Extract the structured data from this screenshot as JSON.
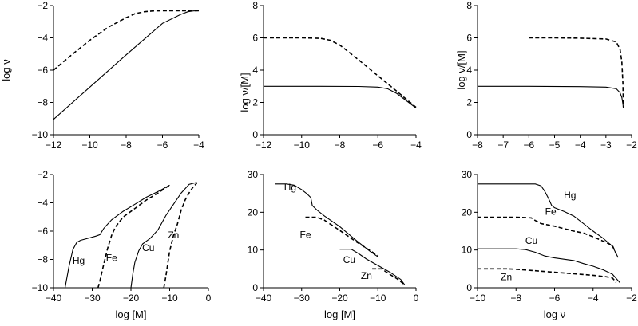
{
  "chart_data": [
    {
      "id": "p1",
      "type": "line",
      "xlabel": "",
      "ylabel": "log ν",
      "xlim": [
        -12,
        -4
      ],
      "ylim": [
        -10,
        -2
      ],
      "xticks": [
        "−12",
        "−10",
        "−8",
        "−6",
        "−4"
      ],
      "xtick_values": [
        -12,
        -10,
        -8,
        -6,
        -4
      ],
      "yticks": [
        "−10",
        "−8",
        "−6",
        "−4",
        "−2"
      ],
      "ytick_values": [
        -10,
        -8,
        -6,
        -4,
        -2
      ],
      "series": [
        {
          "style": "solid",
          "x": [
            -12,
            -10,
            -8,
            -6,
            -5,
            -4.6,
            -4.3,
            -4
          ],
          "y": [
            -9.05,
            -7.05,
            -5.05,
            -3.1,
            -2.55,
            -2.38,
            -2.33,
            -2.32
          ]
        },
        {
          "style": "dashed",
          "x": [
            -12,
            -11,
            -10,
            -9,
            -8,
            -7.5,
            -7,
            -6.5,
            -6,
            -5,
            -4
          ],
          "y": [
            -6.0,
            -5.05,
            -4.15,
            -3.35,
            -2.75,
            -2.5,
            -2.38,
            -2.33,
            -2.32,
            -2.32,
            -2.32
          ]
        }
      ],
      "labels": []
    },
    {
      "id": "p2",
      "type": "line",
      "xlabel": "",
      "ylabel": "log ν/[M]",
      "xlim": [
        -12,
        -4
      ],
      "ylim": [
        0,
        8
      ],
      "xticks": [
        "−12",
        "−10",
        "−8",
        "−6",
        "−4"
      ],
      "xtick_values": [
        -12,
        -10,
        -8,
        -6,
        -4
      ],
      "yticks": [
        "0",
        "2",
        "4",
        "6",
        "8"
      ],
      "ytick_values": [
        0,
        2,
        4,
        6,
        8
      ],
      "series": [
        {
          "style": "solid",
          "x": [
            -12,
            -9,
            -7,
            -6,
            -5.5,
            -5,
            -4.5,
            -4
          ],
          "y": [
            3.0,
            3.0,
            2.99,
            2.95,
            2.85,
            2.55,
            2.1,
            1.65
          ]
        },
        {
          "style": "dashed",
          "x": [
            -12,
            -10,
            -9,
            -8.5,
            -8,
            -7.5,
            -7,
            -6,
            -5,
            -4
          ],
          "y": [
            6.0,
            6.0,
            5.97,
            5.85,
            5.55,
            5.1,
            4.62,
            3.65,
            2.68,
            1.7
          ]
        }
      ],
      "labels": []
    },
    {
      "id": "p3",
      "type": "line",
      "xlabel": "",
      "ylabel": "log ν/[M]",
      "xlim": [
        -8,
        -2
      ],
      "ylim": [
        0,
        8
      ],
      "xticks": [
        "−8",
        "−7",
        "−6",
        "−5",
        "−4",
        "−3",
        "−2"
      ],
      "xtick_values": [
        -8,
        -7,
        -6,
        -5,
        -4,
        -3,
        -2
      ],
      "yticks": [
        "0",
        "2",
        "4",
        "6",
        "8"
      ],
      "ytick_values": [
        0,
        2,
        4,
        6,
        8
      ],
      "series": [
        {
          "style": "solid",
          "x": [
            -8,
            -6,
            -4,
            -3,
            -2.6,
            -2.45,
            -2.38,
            -2.34,
            -2.32
          ],
          "y": [
            3.0,
            3.0,
            2.98,
            2.95,
            2.85,
            2.6,
            2.3,
            1.9,
            1.65
          ]
        },
        {
          "style": "dashed",
          "x": [
            -6,
            -5,
            -4,
            -3,
            -2.6,
            -2.45,
            -2.38,
            -2.34,
            -2.32
          ],
          "y": [
            6.0,
            6.0,
            5.98,
            5.93,
            5.75,
            5.3,
            4.5,
            3.2,
            1.7
          ]
        }
      ],
      "labels": []
    },
    {
      "id": "p4",
      "type": "line",
      "xlabel": "log [M]",
      "ylabel": "",
      "xlim": [
        -40,
        0
      ],
      "ylim": [
        -10,
        -2
      ],
      "xticks": [
        "−40",
        "−30",
        "−20",
        "−10",
        "0"
      ],
      "xtick_values": [
        -40,
        -30,
        -20,
        -10,
        0
      ],
      "yticks": [
        "−10",
        "−8",
        "−6",
        "−4",
        "−2"
      ],
      "ytick_values": [
        -10,
        -8,
        -6,
        -4,
        -2
      ],
      "series": [
        {
          "name": "Hg",
          "style": "solid",
          "x": [
            -37,
            -36,
            -35,
            -34,
            -33,
            -31,
            -29,
            -28,
            -27,
            -25,
            -22,
            -19,
            -16,
            -13,
            -10
          ],
          "y": [
            -10,
            -8.5,
            -7.3,
            -6.8,
            -6.65,
            -6.5,
            -6.35,
            -6.25,
            -5.8,
            -5.2,
            -4.6,
            -4.1,
            -3.6,
            -3.2,
            -2.75
          ]
        },
        {
          "name": "Fe",
          "style": "dashed",
          "x": [
            -28.5,
            -28,
            -27,
            -26,
            -25,
            -24,
            -22,
            -19,
            -16,
            -13,
            -10
          ],
          "y": [
            -10,
            -9.5,
            -8.3,
            -7.2,
            -6.3,
            -5.7,
            -5.0,
            -4.4,
            -3.8,
            -3.3,
            -2.75
          ]
        },
        {
          "name": "Cu",
          "style": "solid",
          "x": [
            -20,
            -19.5,
            -19,
            -18,
            -17,
            -15,
            -13,
            -11,
            -9,
            -7,
            -5,
            -3
          ],
          "y": [
            -10,
            -9.0,
            -8.2,
            -7.4,
            -6.9,
            -6.5,
            -5.9,
            -4.9,
            -4.1,
            -3.3,
            -2.7,
            -2.55
          ]
        },
        {
          "name": "Zn",
          "style": "dashed",
          "x": [
            -11.5,
            -11,
            -10.5,
            -10,
            -9,
            -8,
            -7,
            -6,
            -5,
            -4,
            -3
          ],
          "y": [
            -10,
            -9.2,
            -8.3,
            -7.4,
            -6.3,
            -5.5,
            -4.5,
            -3.8,
            -3.3,
            -2.9,
            -2.6
          ]
        }
      ],
      "labels": [
        {
          "text": "Hg",
          "x": -33.5,
          "y": -8.3
        },
        {
          "text": "Fe",
          "x": -25,
          "y": -8.1
        },
        {
          "text": "Cu",
          "x": -15.5,
          "y": -7.4
        },
        {
          "text": "Zn",
          "x": -9,
          "y": -6.5
        }
      ]
    },
    {
      "id": "p5",
      "type": "line",
      "xlabel": "log [M]",
      "ylabel": "",
      "xlim": [
        -40,
        0
      ],
      "ylim": [
        0,
        30
      ],
      "xticks": [
        "−40",
        "−30",
        "−20",
        "−10",
        "0"
      ],
      "xtick_values": [
        -40,
        -30,
        -20,
        -10,
        0
      ],
      "yticks": [
        "0",
        "10",
        "20",
        "30"
      ],
      "ytick_values": [
        0,
        10,
        20,
        30
      ],
      "series": [
        {
          "name": "Hg",
          "style": "solid",
          "x": [
            -37,
            -34,
            -32,
            -30,
            -28.5,
            -27.6,
            -27.2,
            -26,
            -24,
            -20,
            -16,
            -12,
            -10
          ],
          "y": [
            27.5,
            27.5,
            27.2,
            26.0,
            24.8,
            23.9,
            21.8,
            20.6,
            19.0,
            16.2,
            12.8,
            9.6,
            8.2
          ]
        },
        {
          "name": "Fe",
          "style": "dashed",
          "x": [
            -29,
            -26,
            -24,
            -20,
            -16,
            -12,
            -10
          ],
          "y": [
            18.7,
            18.7,
            17.9,
            15.2,
            12.4,
            9.8,
            8.5
          ]
        },
        {
          "name": "Cu",
          "style": "solid",
          "x": [
            -20,
            -17,
            -15,
            -13,
            -10,
            -7,
            -4,
            -3
          ],
          "y": [
            10.2,
            10.2,
            9.0,
            7.6,
            5.9,
            4.2,
            2.2,
            0.8
          ]
        },
        {
          "name": "Zn",
          "style": "dashed",
          "x": [
            -11.5,
            -9,
            -7,
            -5,
            -3
          ],
          "y": [
            5.0,
            5.0,
            3.6,
            2.4,
            0.8
          ]
        }
      ],
      "labels": [
        {
          "text": "Hg",
          "x": -33,
          "y": 25.8
        },
        {
          "text": "Fe",
          "x": -29,
          "y": 13.2
        },
        {
          "text": "Cu",
          "x": -17.5,
          "y": 6.5
        },
        {
          "text": "Zn",
          "x": -13,
          "y": 2.3
        }
      ]
    },
    {
      "id": "p6",
      "type": "line",
      "xlabel": "log ν",
      "ylabel": "",
      "xlim": [
        -10,
        -2
      ],
      "ylim": [
        0,
        30
      ],
      "xticks": [
        "−10",
        "−8",
        "−6",
        "−4",
        "−2"
      ],
      "xtick_values": [
        -10,
        -8,
        -6,
        -4,
        -2
      ],
      "yticks": [
        "0",
        "10",
        "20",
        "30"
      ],
      "ytick_values": [
        0,
        10,
        20,
        30
      ],
      "series": [
        {
          "name": "Hg",
          "style": "solid",
          "x": [
            -10,
            -7,
            -6.7,
            -6.5,
            -6.3,
            -6.15,
            -6.0,
            -5.5,
            -5,
            -4.5,
            -4,
            -3.5,
            -3,
            -2.7
          ],
          "y": [
            27.5,
            27.5,
            27.0,
            25.5,
            23.5,
            21.8,
            21.2,
            20.2,
            19.0,
            17.0,
            15.0,
            13.2,
            11.0,
            8.0
          ]
        },
        {
          "name": "Fe",
          "style": "dashed",
          "x": [
            -10,
            -8,
            -7.2,
            -7,
            -6.7,
            -6,
            -5,
            -4.5,
            -4,
            -3.5,
            -3,
            -2.8
          ],
          "y": [
            18.7,
            18.7,
            18.5,
            17.8,
            17.0,
            16.3,
            15.0,
            14.5,
            13.5,
            12.4,
            11.2,
            9.0
          ]
        },
        {
          "name": "Cu",
          "style": "solid",
          "x": [
            -10,
            -8,
            -7.5,
            -7,
            -6.5,
            -6,
            -5,
            -4.5,
            -4,
            -3.5,
            -3,
            -2.6
          ],
          "y": [
            10.3,
            10.3,
            10.1,
            9.4,
            8.4,
            7.9,
            7.2,
            6.4,
            5.7,
            4.8,
            3.6,
            1.3
          ]
        },
        {
          "name": "Zn",
          "style": "dashed",
          "x": [
            -10,
            -8.5,
            -8,
            -7,
            -6,
            -5,
            -4,
            -3.3,
            -3,
            -2.8
          ],
          "y": [
            5.0,
            5.0,
            4.9,
            4.5,
            4.1,
            3.7,
            3.3,
            2.9,
            2.6,
            1.4
          ]
        }
      ],
      "labels": [
        {
          "text": "Hg",
          "x": -5.2,
          "y": 23.7
        },
        {
          "text": "Fe",
          "x": -6.2,
          "y": 19.3
        },
        {
          "text": "Cu",
          "x": -7.2,
          "y": 11.6
        },
        {
          "text": "Zn",
          "x": -8.5,
          "y": 2.0
        }
      ]
    }
  ]
}
